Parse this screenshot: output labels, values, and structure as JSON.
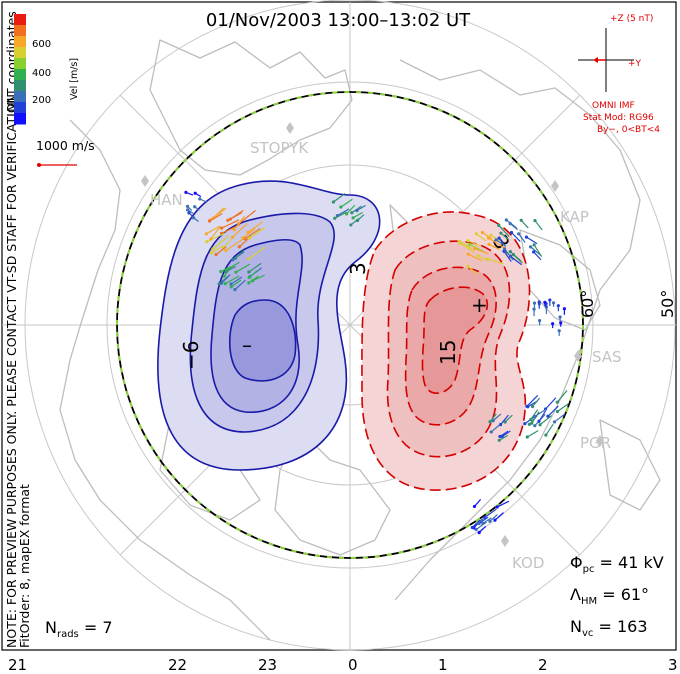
{
  "title": "01/Nov/2003  13:00–13:02  UT",
  "side_note": "NOTE: FOR PREVIEW PURPOSES ONLY. PLEASE CONTACT VT-SD STAFF FOR VERIFICATION.",
  "fit_label": "FitOrder: 8,  mapEX format",
  "coords_label": "MLT coordinates",
  "colorbar": {
    "label": "Vel [m/s]",
    "ticks": [
      "600",
      "400",
      "200"
    ],
    "colors": [
      "#e81c10",
      "#f07020",
      "#f8a828",
      "#d8d030",
      "#88d030",
      "#30b050",
      "#309070",
      "#3a70b8",
      "#2040d8",
      "#1010ff"
    ]
  },
  "scale_vector_label": "1000 m/s",
  "imf": {
    "bz_label": "+Z (5 nT)",
    "by_label": "+Y",
    "source": "OMNI IMF",
    "model": "Stat Mod: RG96",
    "condition": "By−,  0<BT<4"
  },
  "lat_labels": [
    "60°",
    "50°"
  ],
  "stations": [
    "STOPYK",
    "HAN",
    "KAP",
    "SAS",
    "PGR",
    "KOD"
  ],
  "contour_labels": {
    "neg": "−6",
    "pos_inner": "15",
    "pos_outer": "3"
  },
  "extrema_marks": {
    "min": "–",
    "max": "+"
  },
  "stats": {
    "phi_pc": "Φ",
    "phi_sub": "pc",
    "phi_val": " = 41 kV",
    "lambda": "Λ",
    "lambda_sub": "HM",
    "lambda_val": " = 61°",
    "nvc": "N",
    "nvc_sub": "vc",
    "nvc_val": " = 163",
    "nrads": "N",
    "nrads_sub": "rads",
    "nrads_val": " = 7"
  },
  "mlt_ticks": [
    "21",
    "22",
    "23",
    "0",
    "1",
    "2",
    "3"
  ],
  "colors": {
    "negative_contour": "#1a1aa8",
    "positive_contour": "#d40000",
    "hm_boundary": "#8cd23c"
  }
}
